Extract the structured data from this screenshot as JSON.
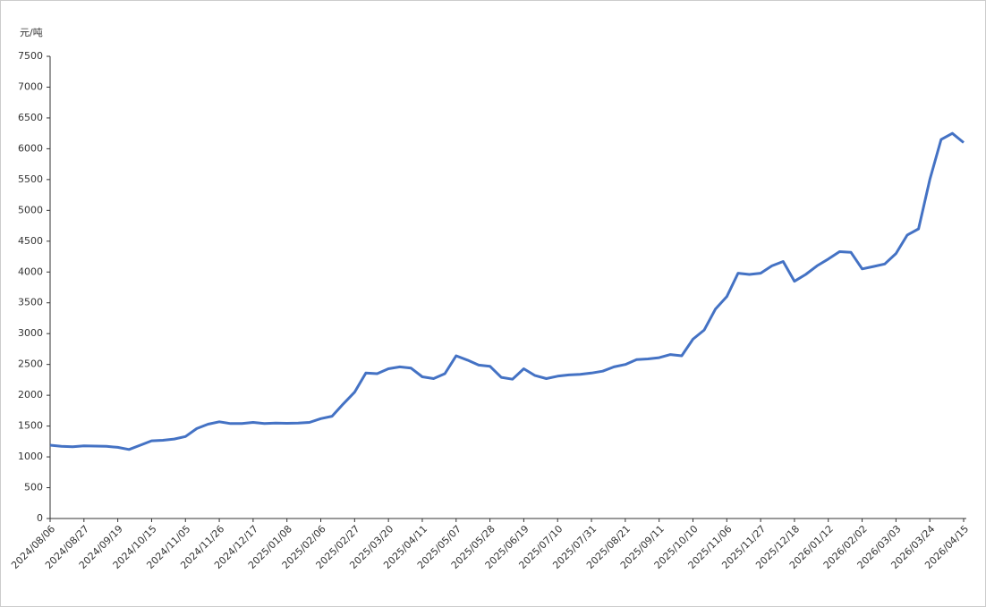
{
  "chart_data": {
    "type": "line",
    "y_label": "元/吨",
    "categories": [
      "2024/08/06",
      null,
      null,
      "2024/08/27",
      null,
      null,
      "2024/09/19",
      null,
      null,
      "2024/10/15",
      null,
      null,
      "2024/11/05",
      null,
      null,
      "2024/11/26",
      null,
      null,
      "2024/12/17",
      null,
      null,
      "2025/01/08",
      null,
      null,
      "2025/02/06",
      null,
      null,
      "2025/02/27",
      null,
      null,
      "2025/03/20",
      null,
      null,
      "2025/04/11",
      null,
      null,
      "2025/05/07",
      null,
      null,
      "2025/05/28",
      null,
      null,
      "2025/06/19",
      null,
      null,
      "2025/07/10",
      null,
      null,
      "2025/07/31",
      null,
      null,
      "2025/08/21",
      null,
      null,
      "2025/09/11",
      null,
      null,
      "2025/10/10",
      null,
      null,
      "2025/11/06",
      null,
      null,
      "2025/11/27",
      null,
      null,
      "2025/12/18",
      null,
      null,
      "2026/01/12",
      null,
      null,
      "2026/02/02",
      null,
      null,
      "2026/03/03",
      null,
      null,
      "2026/03/24",
      null,
      null,
      "2026/04/15"
    ],
    "series": [
      {
        "color": "#4472c4",
        "values": [
          1190,
          1170,
          1165,
          1180,
          1175,
          1170,
          1155,
          1120,
          1190,
          1260,
          1270,
          1290,
          1330,
          1460,
          1530,
          1570,
          1540,
          1540,
          1560,
          1540,
          1550,
          1545,
          1550,
          1560,
          1620,
          1660,
          1860,
          2050,
          2360,
          2350,
          2430,
          2460,
          2440,
          2300,
          2270,
          2350,
          2640,
          2570,
          2490,
          2470,
          2290,
          2260,
          2430,
          2320,
          2270,
          2310,
          2330,
          2340,
          2360,
          2390,
          2460,
          2500,
          2580,
          2590,
          2610,
          2660,
          2640,
          2910,
          3060,
          3400,
          3600,
          3980,
          3960,
          3980,
          4100,
          4170,
          3850,
          3960,
          4100,
          4210,
          4330,
          4320,
          4050,
          4090,
          4130,
          4300,
          4600,
          4700,
          5500,
          6150,
          6250,
          6100
        ]
      }
    ],
    "ylim": [
      0,
      7500
    ],
    "yticks": [
      0,
      500,
      1000,
      1500,
      2000,
      2500,
      3000,
      3500,
      4000,
      4500,
      5000,
      5500,
      6000,
      6500,
      7000,
      7500
    ]
  }
}
